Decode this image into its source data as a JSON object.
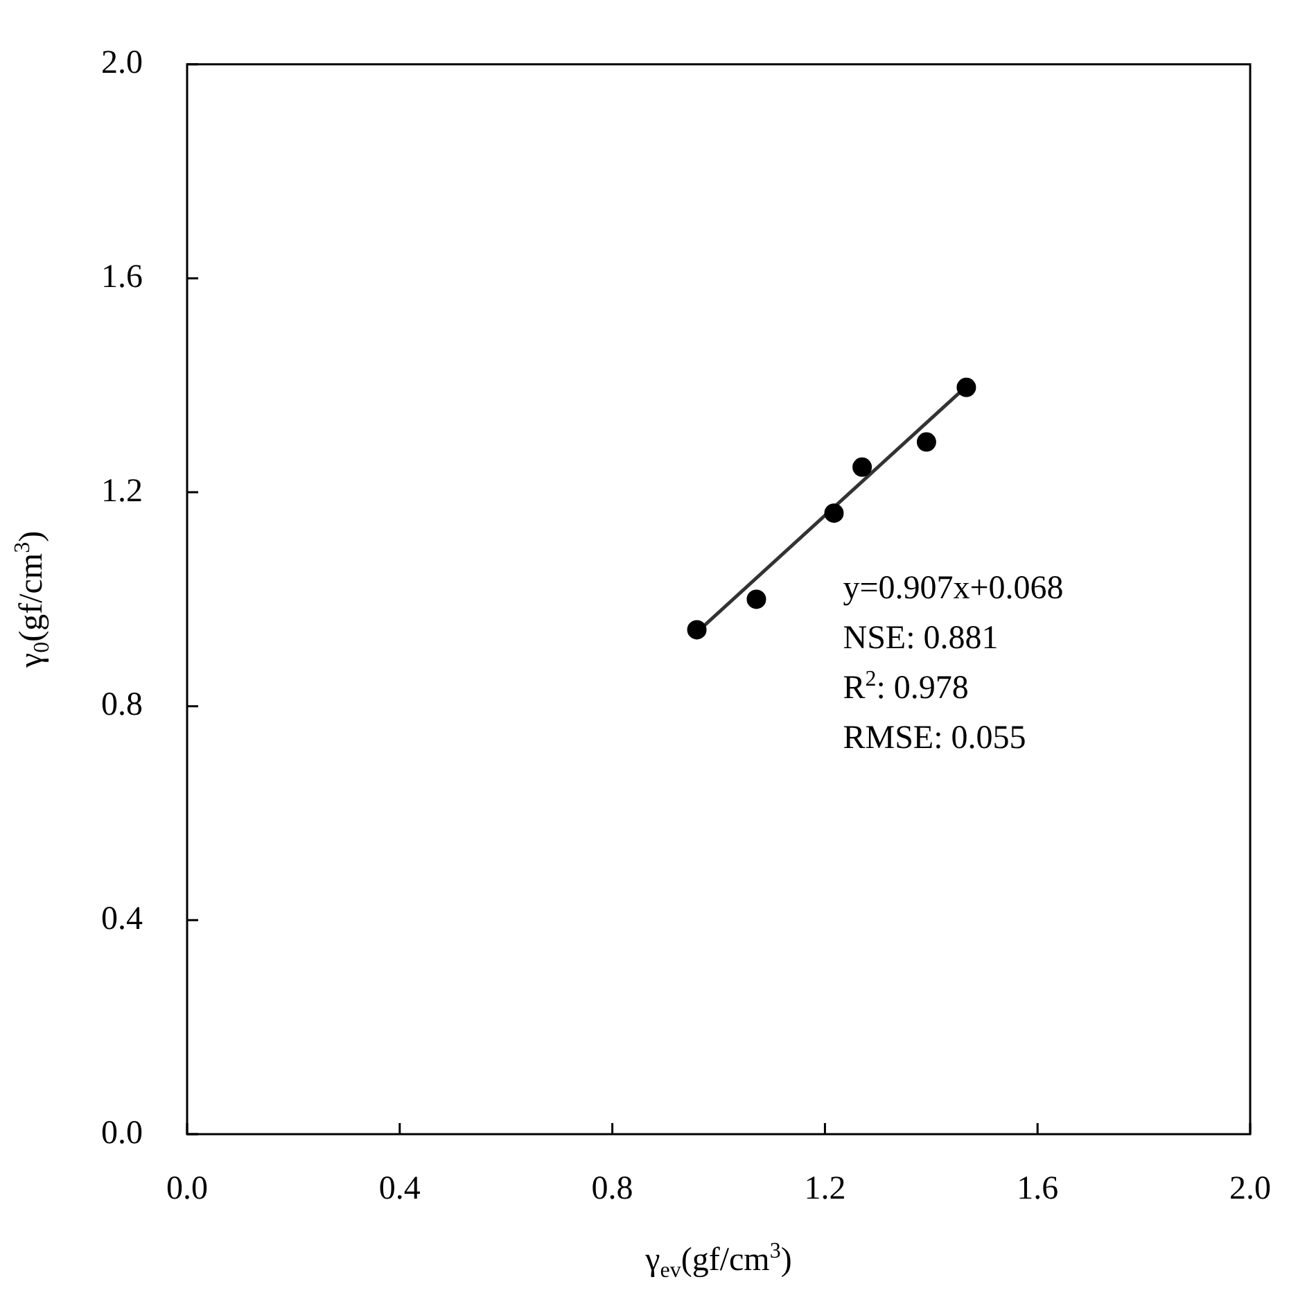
{
  "chart_data": {
    "type": "scatter",
    "xlabel": "γ$_{ev}$(gf/cm$^{3}$)",
    "ylabel": "γ$_{0}$(gf/cm$^{3}$)",
    "xlim": [
      0,
      2
    ],
    "ylim": [
      0,
      2
    ],
    "xticks": [
      {
        "value": 0,
        "label": "0.0"
      },
      0.4,
      0.8,
      1.2,
      1.6,
      {
        "value": 2,
        "label": "2.0"
      }
    ],
    "yticks": [
      {
        "value": 0,
        "label": "0.0"
      },
      0.4,
      0.8,
      1.2,
      1.6,
      {
        "value": 2,
        "label": "2.0"
      }
    ],
    "grid": false,
    "legend": false,
    "marker": "circle",
    "series": [
      {
        "color": "#000000",
        "x": [
          0.959,
          1.071,
          1.217,
          1.27,
          1.391,
          1.466
        ],
        "values": [
          0.943,
          1.0,
          1.161,
          1.247,
          1.294,
          1.396
        ]
      },
      {
        "type": "line",
        "color": "#333333",
        "marker": "none",
        "x": [
          0.959,
          1.466
        ],
        "values": [
          0.938,
          1.398
        ]
      }
    ],
    "annotations": [
      "y=0.907x+0.068",
      "NSE: 0.881",
      "R$^{2}$: 0.978",
      "RMSE: 0.055"
    ]
  }
}
